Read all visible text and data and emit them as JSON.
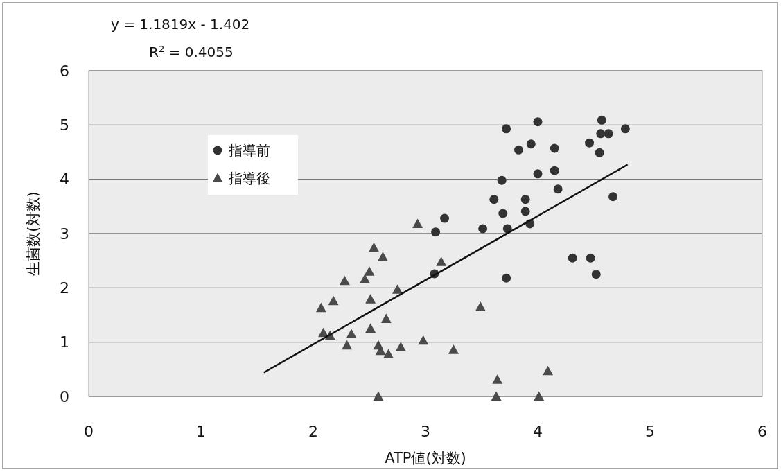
{
  "chart_data": {
    "type": "scatter",
    "xlabel": "ATP値(対数)",
    "ylabel": "生菌数(対数)",
    "annotations": [
      "y = 1.1819x - 1.402",
      "R$^{2}$ = 0.4055"
    ],
    "xlim": [
      0,
      6
    ],
    "ylim": [
      0,
      6
    ],
    "xticks": [
      0,
      1,
      2,
      3,
      4,
      5,
      6
    ],
    "yticks": [
      0,
      1,
      2,
      3,
      4,
      5,
      6
    ],
    "grid": "y",
    "legend": "top left",
    "series": [
      {
        "name": "指導前",
        "color": "#333333",
        "marker": "circle",
        "x": [
          3.09,
          3.17,
          3.08,
          3.51,
          3.61,
          3.69,
          3.68,
          3.72,
          3.73,
          3.72,
          3.83,
          3.94,
          4.0,
          4.0,
          3.89,
          3.89,
          3.93,
          4.15,
          4.15,
          4.18,
          4.31,
          4.46,
          4.47,
          4.52,
          4.55,
          4.57,
          4.56,
          4.63,
          4.67,
          4.78
        ],
        "values": [
          3.03,
          3.28,
          2.26,
          3.09,
          3.63,
          3.37,
          3.98,
          4.93,
          3.09,
          2.18,
          4.54,
          4.65,
          5.06,
          4.1,
          3.63,
          3.41,
          3.18,
          4.57,
          4.16,
          3.82,
          2.55,
          4.67,
          2.55,
          2.25,
          4.49,
          5.09,
          4.84,
          4.84,
          3.68,
          4.93
        ]
      },
      {
        "name": "指導後",
        "color": "#4a4a4a",
        "marker": "triangle",
        "x": [
          2.93,
          3.14,
          2.54,
          2.62,
          2.5,
          2.46,
          2.28,
          2.07,
          2.18,
          2.51,
          2.75,
          2.09,
          2.15,
          2.34,
          2.65,
          2.51,
          2.3,
          2.58,
          2.6,
          2.78,
          2.67,
          2.98,
          3.25,
          3.49,
          3.64,
          3.63,
          2.58,
          4.01,
          4.09
        ],
        "values": [
          3.18,
          2.48,
          2.74,
          2.57,
          2.3,
          2.16,
          2.13,
          1.63,
          1.76,
          1.79,
          1.97,
          1.17,
          1.12,
          1.15,
          1.43,
          1.25,
          0.94,
          0.94,
          0.84,
          0.91,
          0.78,
          1.03,
          0.86,
          1.65,
          0.31,
          0,
          0,
          0,
          0.47
        ]
      },
      {
        "type": "line",
        "color": "#111111",
        "marker": "none",
        "line_style": "solid",
        "x": [
          1.56,
          4.8
        ],
        "values": [
          0.44,
          4.27
        ]
      }
    ]
  }
}
